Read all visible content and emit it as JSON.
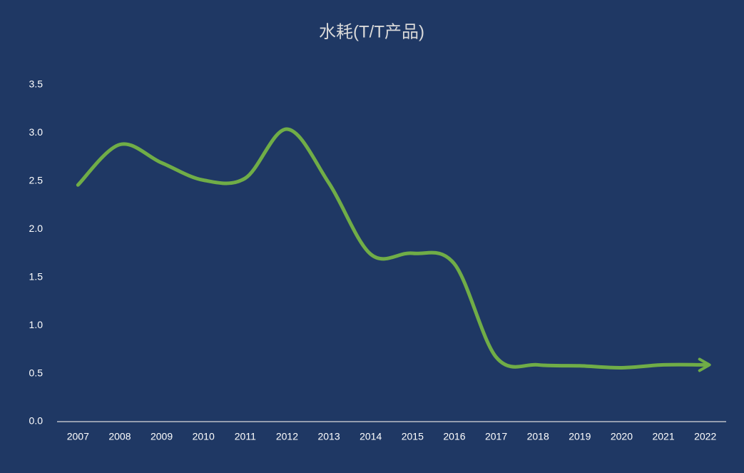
{
  "chart_data": {
    "type": "line",
    "title": "水耗(T/T产品)",
    "categories": [
      "2007",
      "2008",
      "2009",
      "2010",
      "2011",
      "2012",
      "2013",
      "2014",
      "2015",
      "2016",
      "2017",
      "2018",
      "2019",
      "2020",
      "2021",
      "2022"
    ],
    "values": [
      2.46,
      2.88,
      2.69,
      2.51,
      2.53,
      3.04,
      2.48,
      1.74,
      1.75,
      1.64,
      0.67,
      0.59,
      0.58,
      0.56,
      0.59,
      0.59
    ],
    "color": "#70ad47",
    "smooth": true,
    "end_arrow": true,
    "grid": false,
    "ylim": [
      0,
      3.5
    ],
    "yticks": [
      {
        "value": 0,
        "label": "0.0"
      },
      0.5,
      {
        "value": 1,
        "label": "1.0"
      },
      1.5,
      {
        "value": 2,
        "label": "2.0"
      },
      2.5,
      {
        "value": 3,
        "label": "3.0"
      },
      3.5
    ]
  }
}
